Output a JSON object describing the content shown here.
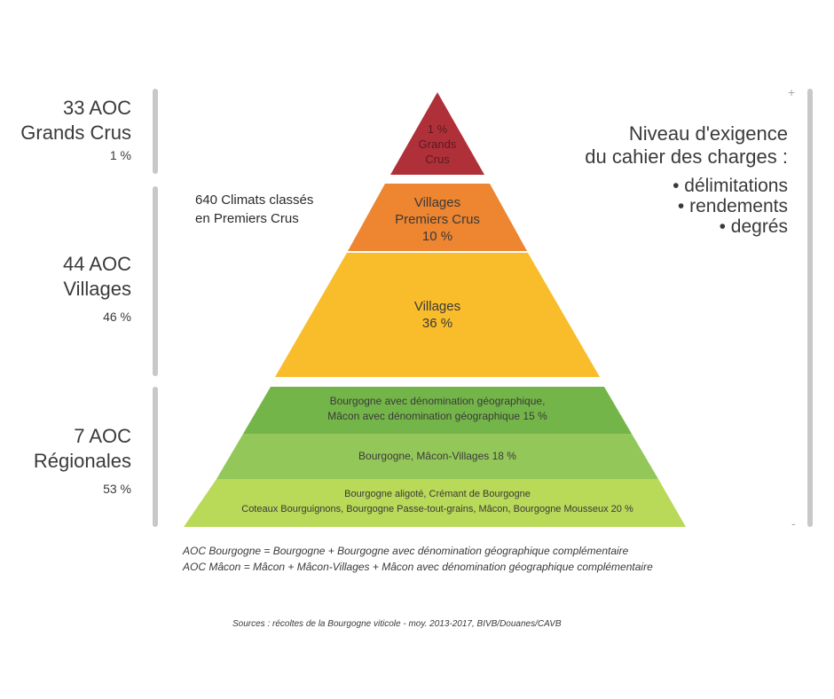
{
  "left_groups": [
    {
      "line1": "33 AOC",
      "line2": "Grands Crus",
      "pct": "1 %"
    },
    {
      "line1": "44 AOC",
      "line2": "Villages",
      "pct": "46 %"
    },
    {
      "line1": "7 AOC",
      "line2": "Régionales",
      "pct": "53 %"
    }
  ],
  "climats_note": {
    "line1": "640 Climats classés",
    "line2": "en Premiers Crus"
  },
  "tiers": {
    "grands_crus": {
      "line1": "1 %",
      "line2": "Grands",
      "line3": "Crus",
      "color": "#b0303a"
    },
    "premiers_crus": {
      "line1": "Villages",
      "line2": "Premiers Crus",
      "line3": "10 %",
      "color": "#ee8530"
    },
    "villages": {
      "line1": "Villages",
      "line2": "36 %",
      "color": "#f9bc2a"
    },
    "reg_geo": {
      "line1": "Bourgogne avec dénomination géographique,",
      "line2": "Mâcon avec dénomination géographique 15 %",
      "color": "#74b54a"
    },
    "reg_villages": {
      "line1": "Bourgogne, Mâcon-Villages  18 %",
      "color": "#94c75a"
    },
    "reg_base": {
      "line1": "Bourgogne aligoté, Crémant de Bourgogne",
      "line2": "Coteaux Bourguignons, Bourgogne Passe-tout-grains, Mâcon, Bourgogne Mousseux 20 %",
      "color": "#b9d958"
    }
  },
  "right": {
    "title_line1": "Niveau d'exigence",
    "title_line2": "du cahier des charges :",
    "criteria": [
      "• délimitations",
      "• rendements",
      "• degrés"
    ],
    "plus": "+",
    "minus": "-"
  },
  "notes": {
    "line1": "AOC Bourgogne = Bourgogne + Bourgogne avec dénomination géographique complémentaire",
    "line2": "AOC Mâcon = Mâcon + Mâcon-Villages + Mâcon avec dénomination géographique complémentaire"
  },
  "sources": "Sources : récoltes de la Bourgogne viticole - moy. 2013-2017, BIVB/Douanes/CAVB"
}
